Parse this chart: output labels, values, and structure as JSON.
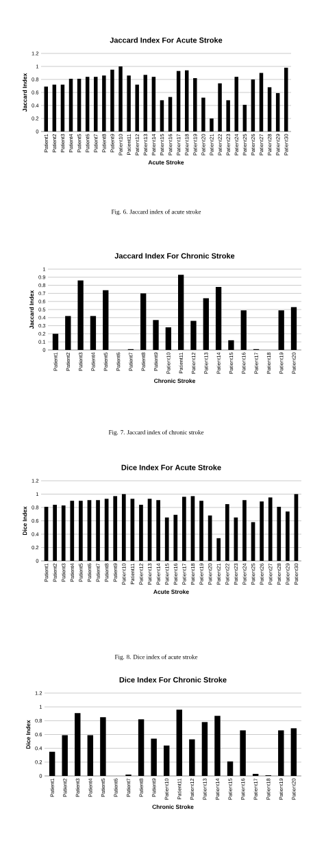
{
  "chart_data": [
    {
      "type": "bar",
      "title": "Jaccard Index For Acute Stroke",
      "xlabel": "Acute Stroke",
      "ylabel": "Jaccard Index",
      "categories": [
        "Patient1",
        "Patient2",
        "Patient3",
        "Patient4",
        "Patient5",
        "Patient6",
        "Patient7",
        "Patient8",
        "Patient9",
        "Patient10",
        "Patient11",
        "Patient12",
        "Patient13",
        "Patient14",
        "Patient15",
        "Patient16",
        "Patient17",
        "Patient18",
        "Patient19",
        "Patient20",
        "Patient21",
        "Patient22",
        "Patient23",
        "Patient24",
        "Patient25",
        "Patient26",
        "Patient27",
        "Patient28",
        "Patient29",
        "Patient30"
      ],
      "values": [
        0.69,
        0.72,
        0.72,
        0.81,
        0.81,
        0.84,
        0.84,
        0.86,
        0.95,
        1.0,
        0.86,
        0.72,
        0.87,
        0.84,
        0.48,
        0.53,
        0.93,
        0.94,
        0.82,
        0.52,
        0.2,
        0.74,
        0.48,
        0.84,
        0.41,
        0.8,
        0.9,
        0.68,
        0.59,
        0.98
      ],
      "color": "#000000",
      "ylim": [
        0,
        1.2
      ],
      "yticks": [
        0,
        0.2,
        0.4,
        0.6,
        0.8,
        1,
        1.2
      ],
      "grid": "y",
      "annotations": [
        "Fig. 6. Jaccard index of acute stroke"
      ]
    },
    {
      "type": "bar",
      "title": "Jaccard Index For Chronic Stroke",
      "xlabel": "Chronic Stroke",
      "ylabel": "Jaccard Index",
      "categories": [
        "Patient1",
        "Patient2",
        "Patient3",
        "Patient4",
        "Patient5",
        "Patient6",
        "Patient7",
        "Patient8",
        "Patient9",
        "Patient10",
        "Patient11",
        "Patient12",
        "Patient13",
        "Patient14",
        "Patient15",
        "Patient16",
        "Patient17",
        "Patient18",
        "Patient19",
        "Patient20"
      ],
      "values": [
        0.2,
        0.42,
        0.86,
        0.42,
        0.74,
        0,
        0.01,
        0.7,
        0.37,
        0.28,
        0.93,
        0.36,
        0.64,
        0.78,
        0.12,
        0.49,
        0.01,
        0,
        0.49,
        0.53
      ],
      "color": "#000000",
      "ylim": [
        0,
        1
      ],
      "yticks": [
        0,
        0.1,
        0.2,
        0.3,
        0.4,
        0.5,
        0.6,
        0.7,
        0.8,
        0.9,
        1
      ],
      "grid": "y",
      "annotations": [
        "Fig. 7. Jaccard index of chronic stroke"
      ]
    },
    {
      "type": "bar",
      "title": "Dice Index For Acute Stroke",
      "xlabel": "Acute Stroke",
      "ylabel": "Dice Index",
      "categories": [
        "Patient1",
        "Patient2",
        "Patient3",
        "Patient4",
        "Patient5",
        "Patient6",
        "Patient7",
        "Patient8",
        "Patient9",
        "Patient10",
        "Patient11",
        "Patient12",
        "Patient13",
        "Patient14",
        "Patient15",
        "Patient16",
        "Patient17",
        "Patient18",
        "Patient19",
        "Patient20",
        "Patient21",
        "Patient22",
        "Patient23",
        "Patient24",
        "Patient25",
        "Patient26",
        "Patient27",
        "Patient28",
        "Patient29",
        "Patient30"
      ],
      "values": [
        0.81,
        0.84,
        0.83,
        0.9,
        0.9,
        0.91,
        0.91,
        0.93,
        0.97,
        1.0,
        0.93,
        0.84,
        0.93,
        0.91,
        0.65,
        0.69,
        0.96,
        0.97,
        0.9,
        0.68,
        0.34,
        0.85,
        0.65,
        0.91,
        0.58,
        0.89,
        0.95,
        0.81,
        0.74,
        1.0
      ],
      "color": "#000000",
      "ylim": [
        0,
        1.2
      ],
      "yticks": [
        0,
        0.2,
        0.4,
        0.6,
        0.8,
        1,
        1.2
      ],
      "grid": "y",
      "annotations": [
        "Fig. 8. Dice index of acute stroke"
      ]
    },
    {
      "type": "bar",
      "title": "Dice Index For Chronic Stroke",
      "xlabel": "Chronic Stroke",
      "ylabel": "Dice Index",
      "categories": [
        "Patient1",
        "Patient2",
        "Patient3",
        "Patient4",
        "Patient5",
        "Patient6",
        "Patient7",
        "Patient8",
        "Patient9",
        "Patient10",
        "Patient11",
        "Patient12",
        "Patient13",
        "Patient14",
        "Patient15",
        "Patient16",
        "Patient17",
        "Patient18",
        "Patient19",
        "Patient20"
      ],
      "values": [
        0.35,
        0.59,
        0.91,
        0.59,
        0.85,
        0,
        0.02,
        0.82,
        0.54,
        0.44,
        0.96,
        0.53,
        0.78,
        0.87,
        0.21,
        0.66,
        0.03,
        0.01,
        0.66,
        0.69
      ],
      "color": "#000000",
      "ylim": [
        0,
        1.2
      ],
      "yticks": [
        0,
        0.2,
        0.4,
        0.6,
        0.8,
        1,
        1.2
      ],
      "grid": "y"
    }
  ]
}
